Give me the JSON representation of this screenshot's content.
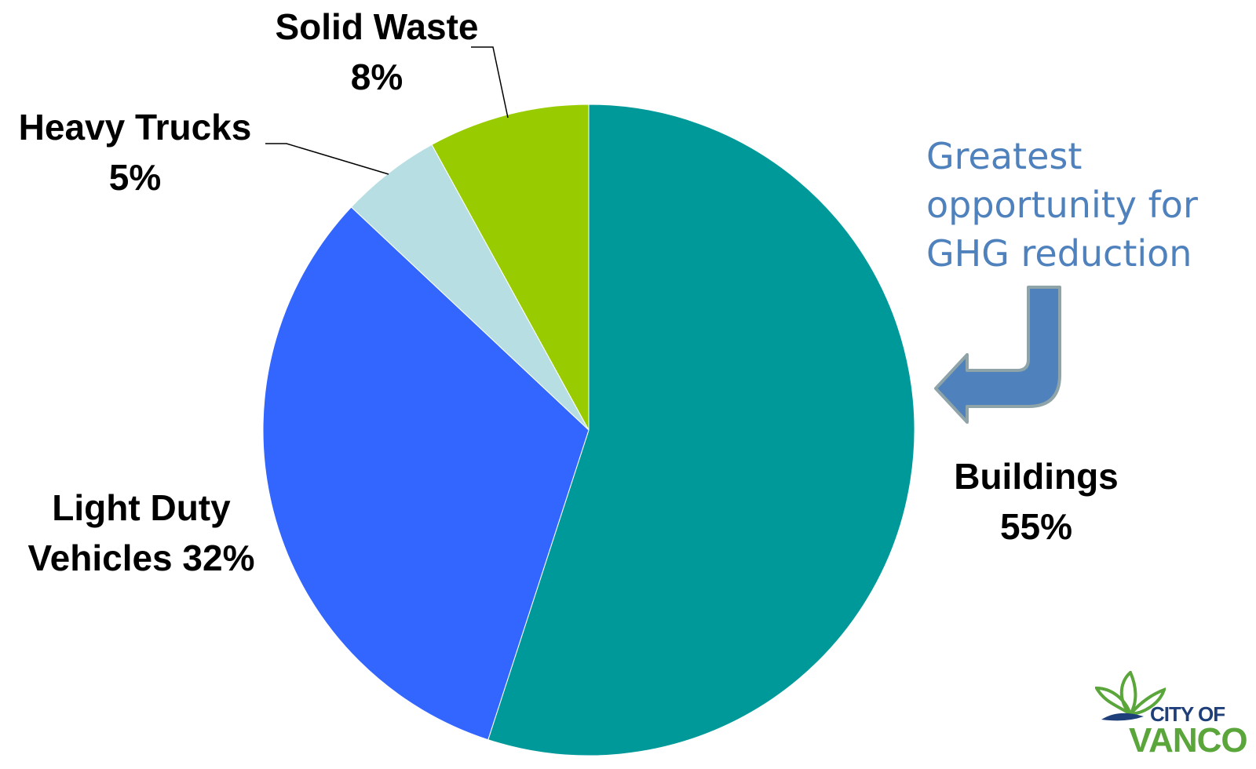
{
  "chart_data": {
    "type": "pie",
    "slices": [
      {
        "label": "Buildings",
        "value": 55,
        "value_label": "55%",
        "color": "#009999"
      },
      {
        "label": "Light Duty Vehicles",
        "value": 32,
        "value_label": "32%",
        "color": "#3366ff"
      },
      {
        "label": "Heavy Trucks",
        "value": 5,
        "value_label": "5%",
        "color": "#b7dfe3"
      },
      {
        "label": "Solid Waste",
        "value": 8,
        "value_label": "8%",
        "color": "#99cc00"
      }
    ],
    "labels": {
      "waste": {
        "line1": "Solid Waste",
        "line2": "8%"
      },
      "trucks": {
        "line1": "Heavy Trucks",
        "line2": "5%"
      },
      "light": {
        "line1": "Light Duty",
        "line2": "Vehicles 32%"
      },
      "buildings": {
        "line1": "Buildings",
        "line2": "55%"
      }
    }
  },
  "callout": {
    "line1": "Greatest",
    "line2": "opportunity for",
    "line3": "GHG reduction",
    "color": "#4f81bd"
  },
  "logo": {
    "line1": "CITY OF",
    "line2": "VANCO",
    "icon": "leaf-flower-icon"
  }
}
